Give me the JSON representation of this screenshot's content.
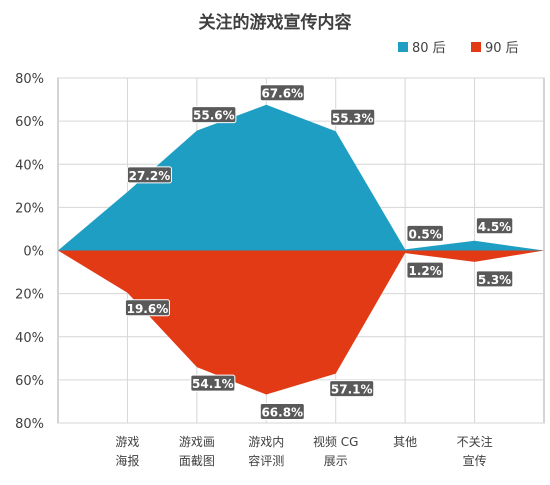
{
  "chart_data": {
    "type": "area",
    "title": "关注的游戏宣传内容",
    "categories": [
      "",
      "游戏\n海报",
      "游戏画\n面截图",
      "游戏内\n容评测",
      "视频 CG\n展示",
      "其他",
      "不关注\n宣传",
      ""
    ],
    "series": [
      {
        "name": "80 后",
        "color": "#1f9ec4",
        "values": [
          0,
          27.2,
          55.6,
          67.6,
          55.3,
          0.5,
          4.5,
          0
        ],
        "labels": [
          "",
          "27.2%",
          "55.6%",
          "67.6%",
          "55.3%",
          "0.5%",
          "4.5%",
          ""
        ]
      },
      {
        "name": "90 后",
        "color": "#e33a16",
        "values": [
          0,
          19.6,
          54.1,
          66.8,
          57.1,
          1.2,
          5.3,
          0
        ],
        "labels": [
          "",
          "19.6%",
          "54.1%",
          "66.8%",
          "57.1%",
          "1.2%",
          "5.3%",
          ""
        ]
      }
    ],
    "ylim": [
      -80,
      80
    ],
    "y_ticks": [
      "80%",
      "60%",
      "40%",
      "20%",
      "0%",
      "20%",
      "40%",
      "60%",
      "80%"
    ],
    "grid": true,
    "legend_position": "top-right"
  }
}
